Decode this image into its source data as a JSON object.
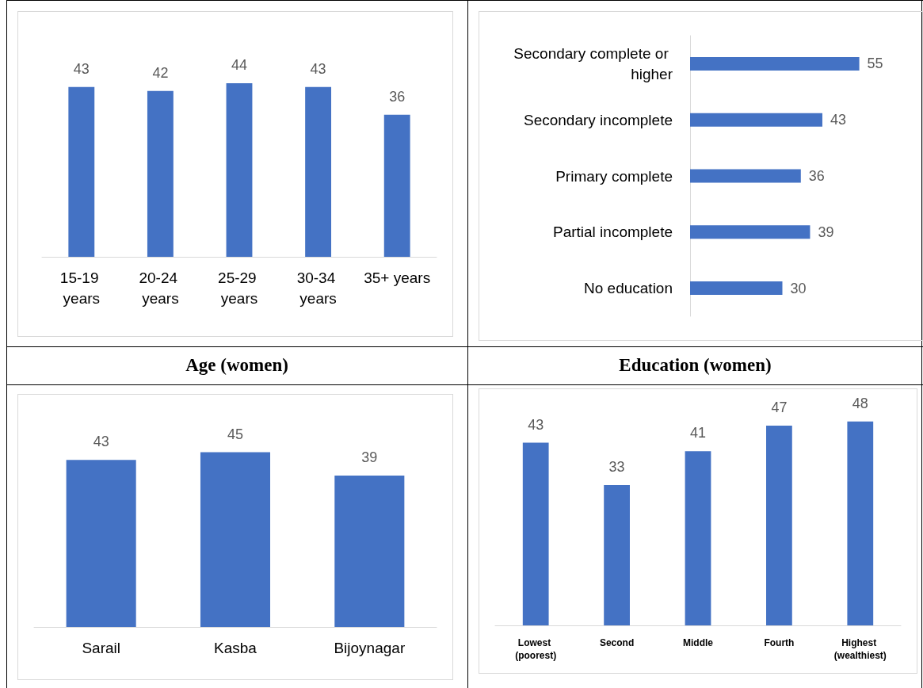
{
  "chart_data": [
    {
      "type": "bar",
      "title": "Age (women)",
      "categories": [
        "15-19 years",
        "20-24 years",
        "25-29 years",
        "30-34 years",
        "35+ years"
      ],
      "values": [
        43,
        42,
        44,
        43,
        36
      ],
      "color": "#4472c4",
      "data_labels": true
    },
    {
      "type": "bar",
      "title": "Education (women)",
      "orientation": "horizontal",
      "categories": [
        "Secondary complete or higher",
        "Secondary incomplete",
        "Primary complete",
        "Partial incomplete",
        "No education"
      ],
      "values": [
        55,
        43,
        36,
        39,
        30
      ],
      "color": "#4472c4",
      "data_labels": true
    },
    {
      "type": "bar",
      "categories": [
        "Sarail",
        "Kasba",
        "Bijoynagar"
      ],
      "values": [
        43,
        45,
        39
      ],
      "color": "#4472c4",
      "data_labels": true
    },
    {
      "type": "bar",
      "categories": [
        "Lowest (poorest)",
        "Second",
        "Middle",
        "Fourth",
        "Highest (wealthiest)"
      ],
      "values": [
        43,
        33,
        41,
        47,
        48
      ],
      "color": "#4472c4",
      "data_labels": true
    }
  ]
}
